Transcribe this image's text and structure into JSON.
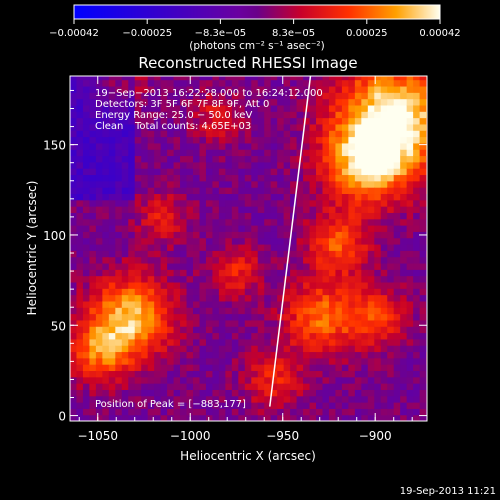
{
  "chart_data": {
    "type": "heatmap",
    "title": "Reconstructed RHESSI Image",
    "xlabel": "Heliocentric X (arcsec)",
    "ylabel": "Heliocentric Y (arcsec)",
    "xlim": [
      -1065,
      -872
    ],
    "ylim": [
      -3,
      188
    ],
    "x_ticks": [
      -1050,
      -1000,
      -950,
      -900
    ],
    "x_tick_labels": [
      "−1050",
      "−1000",
      "−950",
      "−900"
    ],
    "y_ticks": [
      0,
      50,
      100,
      150
    ],
    "y_tick_labels": [
      "0",
      "50",
      "100",
      "150"
    ],
    "colorbar": {
      "range": [
        -0.00042,
        0.00042
      ],
      "tick_labels": [
        "−0.00042",
        "−0.00025",
        "−8.3e−05",
        "8.3e−05",
        "0.00025",
        "0.00042"
      ],
      "unit_label": "(photons cm⁻² s⁻¹ asec⁻²)"
    },
    "info_lines": [
      "19−Sep−2013 16:22:28.000 to 16:24:12.000",
      "Detectors: 3F 5F 6F 7F 8F 9F, Att 0",
      "Energy Range: 25.0 − 50.0 keV",
      "Clean",
      "Total counts: 4.65E+03"
    ],
    "peak_label": "Position of Peak = [−883,177]",
    "peak": [
      -883,
      177
    ],
    "limb_line": {
      "x": [
        -957,
        -935
      ],
      "y": [
        5,
        188
      ]
    },
    "hotspots": [
      {
        "x": -890,
        "y": 165,
        "amp": 1.0,
        "r": 22
      },
      {
        "x": -905,
        "y": 140,
        "amp": 0.75,
        "r": 16
      },
      {
        "x": -1032,
        "y": 55,
        "amp": 0.85,
        "r": 16
      },
      {
        "x": -1050,
        "y": 35,
        "amp": 0.55,
        "r": 12
      },
      {
        "x": -920,
        "y": 95,
        "amp": 0.55,
        "r": 12
      },
      {
        "x": -930,
        "y": 55,
        "amp": 0.6,
        "r": 14
      },
      {
        "x": -900,
        "y": 55,
        "amp": 0.5,
        "r": 12
      },
      {
        "x": -975,
        "y": 80,
        "amp": 0.4,
        "r": 10
      },
      {
        "x": -955,
        "y": 20,
        "amp": 0.4,
        "r": 12
      },
      {
        "x": -1015,
        "y": 110,
        "amp": 0.35,
        "r": 10
      },
      {
        "x": -985,
        "y": 165,
        "amp": 0.35,
        "r": 10
      },
      {
        "x": -1040,
        "y": 185,
        "amp": 0.4,
        "r": 10
      }
    ]
  },
  "footer": {
    "timestamp": "19-Sep-2013 11:21"
  }
}
